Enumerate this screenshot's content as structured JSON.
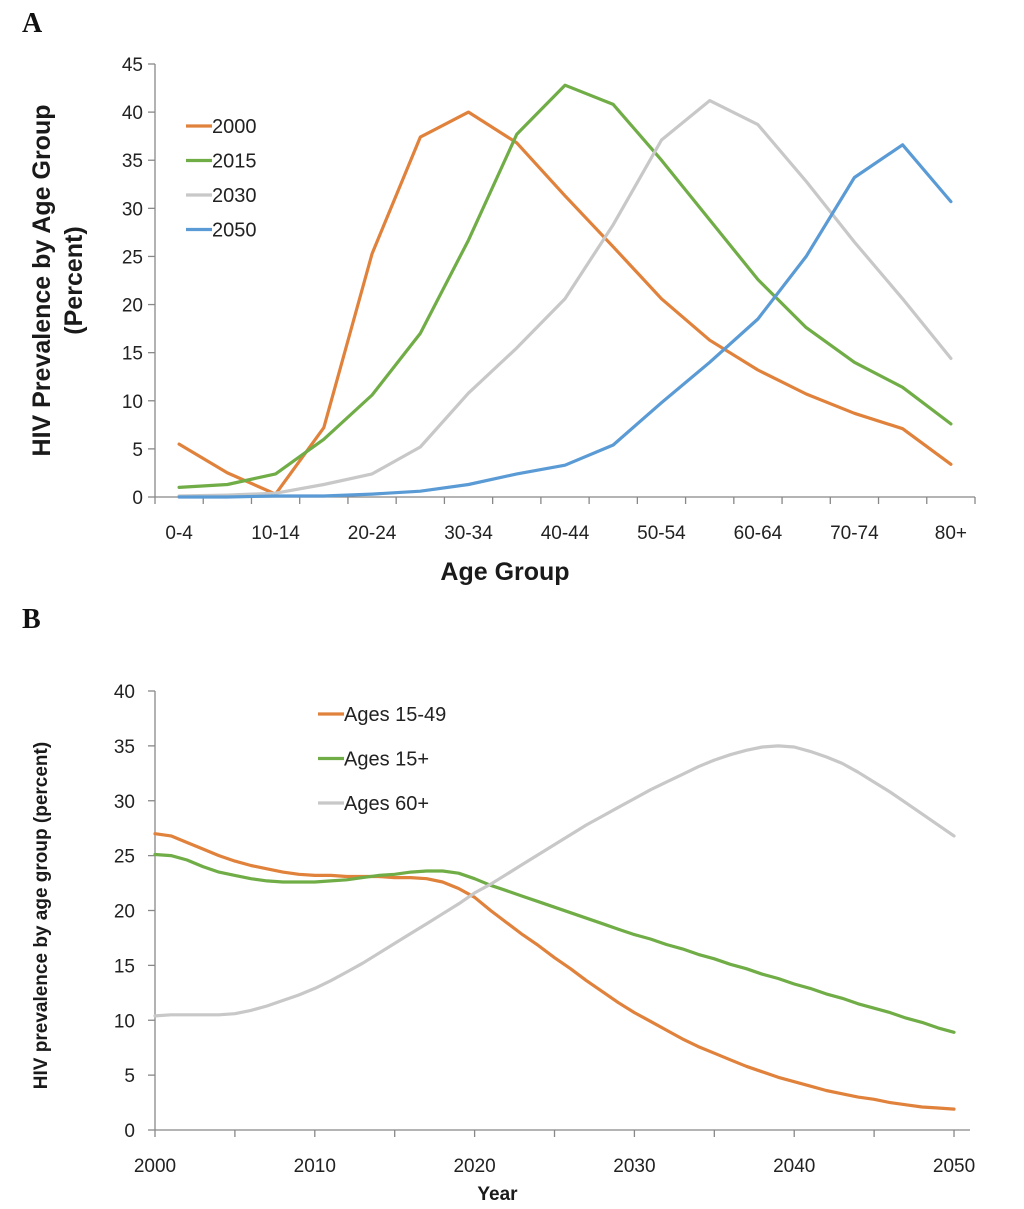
{
  "chart_data": [
    {
      "panel": "A",
      "type": "line",
      "xlabel": "Age Group",
      "ylabel_lines": [
        "HIV Prevalence by Age Group",
        "(Percent)"
      ],
      "ylim": [
        0,
        45
      ],
      "yticks": [
        0,
        5,
        10,
        15,
        20,
        25,
        30,
        35,
        40,
        45
      ],
      "categories": [
        "0-4",
        "5-9",
        "10-14",
        "15-19",
        "20-24",
        "25-29",
        "30-34",
        "35-39",
        "40-44",
        "45-49",
        "50-54",
        "55-59",
        "60-64",
        "65-69",
        "70-74",
        "75-79",
        "80+"
      ],
      "shown_tick_labels": [
        "0-4",
        "10-14",
        "20-24",
        "30-34",
        "40-44",
        "50-54",
        "60-64",
        "70-74",
        "80+"
      ],
      "legend_position": "top-left",
      "series": [
        {
          "name": "2000",
          "color": "#E0823B",
          "values": [
            5.5,
            2.5,
            0.3,
            7.2,
            25.3,
            37.4,
            40.0,
            36.8,
            31.3,
            26.0,
            20.6,
            16.3,
            13.2,
            10.7,
            8.7,
            7.1,
            3.4
          ]
        },
        {
          "name": "2015",
          "color": "#70AD47",
          "values": [
            1.0,
            1.3,
            2.4,
            6.0,
            10.6,
            17.0,
            26.7,
            37.7,
            42.8,
            40.8,
            35.0,
            28.8,
            22.6,
            17.6,
            14.0,
            11.4,
            7.6
          ]
        },
        {
          "name": "2030",
          "color": "#C8C8C8",
          "values": [
            0.1,
            0.2,
            0.4,
            1.3,
            2.4,
            5.2,
            10.8,
            15.5,
            20.6,
            28.3,
            37.1,
            41.2,
            38.7,
            32.8,
            26.5,
            20.6,
            14.4
          ]
        },
        {
          "name": "2050",
          "color": "#5B9BD5",
          "values": [
            0.0,
            0.0,
            0.1,
            0.1,
            0.3,
            0.6,
            1.3,
            2.4,
            3.3,
            5.4,
            9.8,
            14.0,
            18.5,
            25.0,
            33.2,
            36.6,
            30.7
          ]
        }
      ]
    },
    {
      "panel": "B",
      "type": "line",
      "xlabel": "Year",
      "ylabel": "HIV prevalence by age group (percent)",
      "xlim": [
        2000,
        2050
      ],
      "xticks": [
        2000,
        2010,
        2020,
        2030,
        2040,
        2050
      ],
      "ylim": [
        0,
        40
      ],
      "yticks": [
        0,
        5,
        10,
        15,
        20,
        25,
        30,
        35,
        40
      ],
      "legend_position": "top-center",
      "x": [
        2000,
        2001,
        2002,
        2003,
        2004,
        2005,
        2006,
        2007,
        2008,
        2009,
        2010,
        2011,
        2012,
        2013,
        2014,
        2015,
        2016,
        2017,
        2018,
        2019,
        2020,
        2021,
        2022,
        2023,
        2024,
        2025,
        2026,
        2027,
        2028,
        2029,
        2030,
        2031,
        2032,
        2033,
        2034,
        2035,
        2036,
        2037,
        2038,
        2039,
        2040,
        2041,
        2042,
        2043,
        2044,
        2045,
        2046,
        2047,
        2048,
        2049,
        2050
      ],
      "series": [
        {
          "name": "Ages 15-49",
          "color": "#E0823B",
          "values": [
            27.0,
            26.8,
            26.2,
            25.6,
            25.0,
            24.5,
            24.1,
            23.8,
            23.5,
            23.3,
            23.2,
            23.2,
            23.1,
            23.1,
            23.1,
            23.0,
            23.0,
            22.9,
            22.6,
            22.0,
            21.2,
            20.0,
            18.9,
            17.8,
            16.8,
            15.7,
            14.7,
            13.6,
            12.6,
            11.6,
            10.7,
            9.9,
            9.1,
            8.3,
            7.6,
            7.0,
            6.4,
            5.8,
            5.3,
            4.8,
            4.4,
            4.0,
            3.6,
            3.3,
            3.0,
            2.8,
            2.5,
            2.3,
            2.1,
            2.0,
            1.9
          ]
        },
        {
          "name": "Ages 15+",
          "color": "#70AD47",
          "values": [
            25.1,
            25.0,
            24.6,
            24.0,
            23.5,
            23.2,
            22.9,
            22.7,
            22.6,
            22.6,
            22.6,
            22.7,
            22.8,
            23.0,
            23.2,
            23.3,
            23.5,
            23.6,
            23.6,
            23.4,
            22.9,
            22.3,
            21.8,
            21.3,
            20.8,
            20.3,
            19.8,
            19.3,
            18.8,
            18.3,
            17.8,
            17.4,
            16.9,
            16.5,
            16.0,
            15.6,
            15.1,
            14.7,
            14.2,
            13.8,
            13.3,
            12.9,
            12.4,
            12.0,
            11.5,
            11.1,
            10.7,
            10.2,
            9.8,
            9.3,
            8.9
          ]
        },
        {
          "name": "Ages 60+",
          "color": "#C8C8C8",
          "values": [
            10.4,
            10.5,
            10.5,
            10.5,
            10.5,
            10.6,
            10.9,
            11.3,
            11.8,
            12.3,
            12.9,
            13.6,
            14.4,
            15.2,
            16.1,
            17.0,
            17.9,
            18.8,
            19.7,
            20.6,
            21.6,
            22.4,
            23.3,
            24.2,
            25.1,
            26.0,
            26.9,
            27.8,
            28.6,
            29.4,
            30.2,
            31.0,
            31.7,
            32.4,
            33.1,
            33.7,
            34.2,
            34.6,
            34.9,
            35.0,
            34.9,
            34.5,
            34.0,
            33.4,
            32.6,
            31.7,
            30.8,
            29.8,
            28.8,
            27.8,
            26.8
          ]
        }
      ]
    }
  ]
}
